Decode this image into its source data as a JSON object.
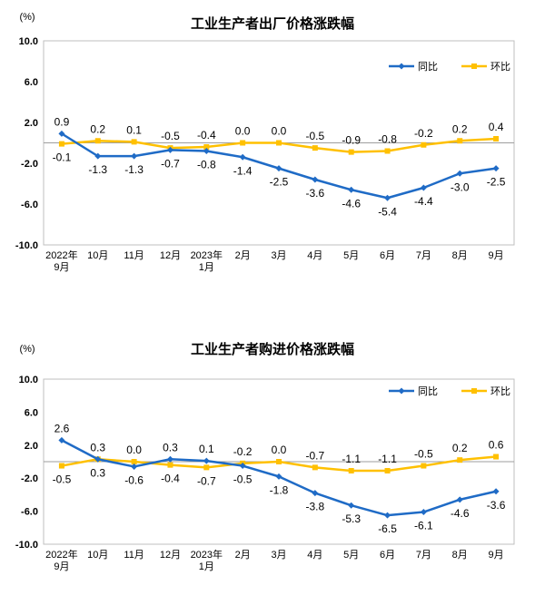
{
  "chart_data": [
    {
      "type": "line",
      "title": "工业生产者出厂价格涨跌幅",
      "unit_label": "(%)",
      "categories": [
        "2022年\n9月",
        "10月",
        "11月",
        "12月",
        "2023年\n1月",
        "2月",
        "3月",
        "4月",
        "5月",
        "6月",
        "7月",
        "8月",
        "9月"
      ],
      "series": [
        {
          "name": "同比",
          "color": "#1F6BC6",
          "values": [
            0.9,
            -1.3,
            -1.3,
            -0.7,
            -0.8,
            -1.4,
            -2.5,
            -3.6,
            -4.6,
            -5.4,
            -4.4,
            -3.0,
            -2.5
          ]
        },
        {
          "name": "环比",
          "color": "#FFC000",
          "values": [
            -0.1,
            0.2,
            0.1,
            -0.5,
            -0.4,
            0.0,
            0.0,
            -0.5,
            -0.9,
            -0.8,
            -0.2,
            0.2,
            0.4
          ]
        }
      ],
      "ylim": [
        -10.0,
        10.0
      ],
      "yticks": [
        "10.0",
        "6.0",
        "2.0",
        "-2.0",
        "-6.0",
        "-10.0"
      ],
      "legend": "top-right",
      "grid": false
    },
    {
      "type": "line",
      "title": "工业生产者购进价格涨跌幅",
      "unit_label": "(%)",
      "categories": [
        "2022年\n9月",
        "10月",
        "11月",
        "12月",
        "2023年\n1月",
        "2月",
        "3月",
        "4月",
        "5月",
        "6月",
        "7月",
        "8月",
        "9月"
      ],
      "series": [
        {
          "name": "同比",
          "color": "#1F6BC6",
          "values": [
            2.6,
            0.3,
            -0.6,
            0.3,
            0.1,
            -0.5,
            -1.8,
            -3.8,
            -5.3,
            -6.5,
            -6.1,
            -4.6,
            -3.6
          ]
        },
        {
          "name": "环比",
          "color": "#FFC000",
          "values": [
            -0.5,
            0.3,
            0.0,
            -0.4,
            -0.7,
            -0.2,
            0.0,
            -0.7,
            -1.1,
            -1.1,
            -0.5,
            0.2,
            0.6
          ]
        }
      ],
      "ylim": [
        -10.0,
        10.0
      ],
      "yticks": [
        "10.0",
        "6.0",
        "2.0",
        "-2.0",
        "-6.0",
        "-10.0"
      ],
      "legend": "top-right",
      "grid": false
    }
  ]
}
